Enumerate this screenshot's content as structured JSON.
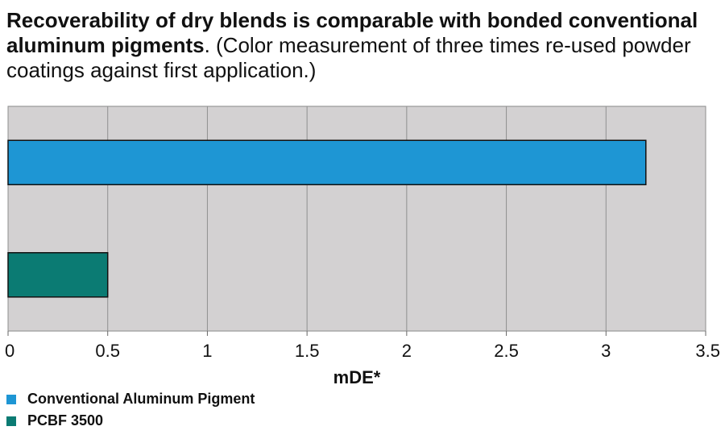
{
  "chart_data": {
    "type": "hbar",
    "title": "Recoverability of dry blends is comparable with bonded conventional aluminum pigments",
    "subtitle": ". (Color measurement of three times re-used powder coatings against first application.)",
    "xlabel": "mDE*",
    "series": [
      {
        "name": "Conventional Aluminum Pigment",
        "color": "#1e96d4",
        "values": [
          3.2
        ]
      },
      {
        "name": "PCBF 3500",
        "color": "#0b7b73",
        "values": [
          0.5
        ]
      }
    ],
    "xlim": [
      0,
      3.5
    ],
    "xticks": [
      0,
      0.5,
      1,
      1.5,
      2,
      2.5,
      3,
      3.5
    ],
    "grid": true
  }
}
